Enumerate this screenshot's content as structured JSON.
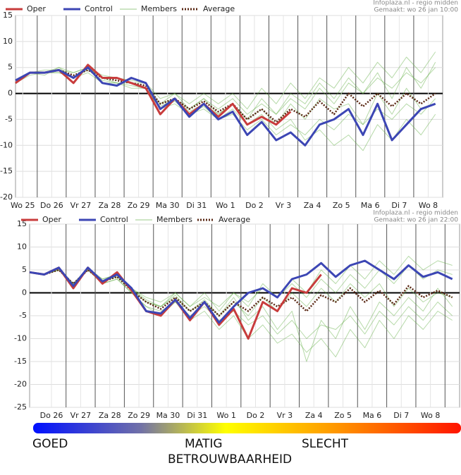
{
  "chart_data": [
    {
      "type": "line",
      "source": "Infoplaza.nl - regio midden",
      "subtitle": "Gemaakt: wo 26 jan 10:00",
      "x": [
        6,
        18,
        30,
        42,
        54,
        66,
        78,
        90,
        102,
        114,
        126,
        138,
        150,
        162,
        174,
        186,
        198,
        210,
        222,
        234,
        246,
        258,
        270,
        282,
        294,
        306,
        318,
        330,
        342,
        354
      ],
      "xlim": [
        6,
        360
      ],
      "xticks": [
        {
          "value": 12,
          "label": "Wo 25"
        },
        {
          "value": 36,
          "label": "Do 26"
        },
        {
          "value": 60,
          "label": "Vr 27"
        },
        {
          "value": 84,
          "label": "Za 28"
        },
        {
          "value": 108,
          "label": "Zo 29"
        },
        {
          "value": 132,
          "label": "Ma 30"
        },
        {
          "value": 156,
          "label": "Di 31"
        },
        {
          "value": 180,
          "label": "Wo 1"
        },
        {
          "value": 204,
          "label": "Do 2"
        },
        {
          "value": 228,
          "label": "Vr 3"
        },
        {
          "value": 252,
          "label": "Za 4"
        },
        {
          "value": 276,
          "label": "Zo 5"
        },
        {
          "value": 300,
          "label": "Ma 6"
        },
        {
          "value": 324,
          "label": "Di 7"
        },
        {
          "value": 348,
          "label": "Wo 8"
        }
      ],
      "ylim": [
        -20,
        15
      ],
      "yticks": [
        -20,
        -15,
        -10,
        -5,
        0,
        5,
        10,
        15
      ],
      "grid": true,
      "series": [
        {
          "name": "Oper",
          "color": "#c83c3c",
          "values": [
            2,
            4,
            4,
            4.5,
            2,
            5.5,
            3,
            3,
            2,
            1,
            -4,
            -1,
            -4,
            -2,
            -4.5,
            -2,
            -6,
            -4.5,
            -6,
            -3.5,
            null,
            null,
            null,
            null,
            null,
            null,
            null,
            null,
            null,
            null
          ]
        },
        {
          "name": "Control",
          "color": "#3c46b4",
          "values": [
            2.5,
            4,
            4,
            4.5,
            3,
            5,
            2,
            1.5,
            3,
            2,
            -3,
            -1,
            -4.5,
            -2,
            -5,
            -3.5,
            -8,
            -5.5,
            -9,
            -7.5,
            -10,
            -6,
            -5,
            -3,
            -8,
            -2,
            -9,
            -6,
            -3,
            -2
          ]
        },
        {
          "name": "Members",
          "color": "#5aaa3c",
          "values": [
            [
              2,
              4,
              3.5,
              5,
              3,
              5,
              3,
              3,
              2,
              2,
              -2,
              0,
              -3,
              -1,
              -3,
              -1,
              -4,
              -2,
              -4,
              -1,
              -3,
              1,
              -2,
              2,
              0,
              3,
              1,
              4,
              2,
              5
            ],
            [
              2,
              3.5,
              4,
              4,
              3,
              4,
              2,
              2,
              1,
              1,
              -3,
              -2,
              -4,
              -3,
              -5,
              -4,
              -7,
              -5,
              -8,
              -6,
              -8,
              -5,
              -7,
              -4,
              -6,
              -3,
              -5,
              -2,
              -4,
              -1
            ],
            [
              2,
              4,
              4.5,
              4.5,
              4,
              5,
              3.5,
              3,
              2.5,
              2,
              -1,
              0,
              -2,
              0,
              -2,
              0,
              -3,
              1,
              -2,
              2,
              -1,
              3,
              1,
              5,
              2,
              6,
              3,
              7,
              4,
              8
            ],
            [
              2,
              4,
              4,
              4,
              3,
              4.5,
              2.5,
              2,
              1.5,
              1,
              -3,
              -1.5,
              -4,
              -2.5,
              -5,
              -3,
              -6,
              -4,
              -7,
              -5,
              -9,
              -7,
              -10,
              -8,
              -11,
              -6,
              -9,
              -5,
              -8,
              -4
            ],
            [
              2,
              4,
              4,
              5,
              4,
              5,
              3,
              2,
              2,
              1,
              -2,
              -1,
              -3,
              -1,
              -4,
              -2,
              -5,
              -1,
              -4,
              0,
              -2,
              2,
              -1,
              3,
              0,
              4,
              -1,
              5,
              1,
              6
            ],
            [
              2,
              4,
              4,
              4.5,
              3,
              5,
              3,
              3,
              2,
              1,
              -2.5,
              -1,
              -3.5,
              -2,
              -4,
              -2,
              -5,
              -3,
              -6,
              -2,
              -5,
              -1,
              -3,
              -2,
              -6,
              0,
              -4,
              1,
              -3,
              -2
            ]
          ]
        },
        {
          "name": "Average",
          "color": "#5a2814",
          "values": [
            2,
            4,
            4,
            4.5,
            3.5,
            4.5,
            3,
            2.5,
            2,
            1.5,
            -2,
            -1,
            -3,
            -1.5,
            -3.5,
            -2,
            -5,
            -3,
            -5.5,
            -3,
            -4.5,
            -1.5,
            -4,
            0,
            -2.5,
            0,
            -2.5,
            0,
            -2,
            0
          ]
        }
      ]
    },
    {
      "type": "line",
      "source": "Infoplaza.nl - regio midden",
      "subtitle": "Gemaakt: wo 26 jan 22:00",
      "x": [
        18,
        30,
        42,
        54,
        66,
        78,
        90,
        102,
        114,
        126,
        138,
        150,
        162,
        174,
        186,
        198,
        210,
        222,
        234,
        246,
        258,
        270,
        282,
        294,
        306,
        318,
        330,
        342,
        354,
        366
      ],
      "xlim": [
        18,
        372
      ],
      "xticks": [
        {
          "value": 36,
          "label": "Do 26"
        },
        {
          "value": 60,
          "label": "Vr 27"
        },
        {
          "value": 84,
          "label": "Za 28"
        },
        {
          "value": 108,
          "label": "Zo 29"
        },
        {
          "value": 132,
          "label": "Ma 30"
        },
        {
          "value": 156,
          "label": "Di 31"
        },
        {
          "value": 180,
          "label": "Wo 1"
        },
        {
          "value": 204,
          "label": "Do 2"
        },
        {
          "value": 228,
          "label": "Vr 3"
        },
        {
          "value": 252,
          "label": "Za 4"
        },
        {
          "value": 276,
          "label": "Zo 5"
        },
        {
          "value": 300,
          "label": "Ma 6"
        },
        {
          "value": 324,
          "label": "Di 7"
        },
        {
          "value": 348,
          "label": "Wo 8"
        }
      ],
      "ylim": [
        -25,
        15
      ],
      "yticks": [
        -25,
        -20,
        -15,
        -10,
        -5,
        0,
        5,
        10,
        15
      ],
      "grid": true,
      "series": [
        {
          "name": "Oper",
          "color": "#c83c3c",
          "values": [
            4.5,
            4,
            5.5,
            1,
            5.5,
            2,
            4.5,
            0.5,
            -4,
            -5,
            -1.5,
            -6,
            -2,
            -7,
            -3.5,
            -10,
            -2,
            -4,
            1,
            0,
            4,
            null,
            null,
            null,
            null,
            null,
            null,
            null,
            null,
            null
          ]
        },
        {
          "name": "Control",
          "color": "#3c46b4",
          "values": [
            4.5,
            4,
            5.5,
            1.5,
            5.5,
            2.5,
            4,
            1,
            -4,
            -4.5,
            -1.5,
            -5.5,
            -2,
            -6.5,
            -3,
            0,
            1,
            -1,
            3,
            4,
            6.5,
            3.5,
            6,
            7,
            5,
            3,
            6,
            3.5,
            4.5,
            3
          ]
        },
        {
          "name": "Members",
          "color": "#5aaa3c",
          "values": [
            [
              4.5,
              4,
              5,
              2,
              5,
              3,
              4,
              1,
              -1,
              -2,
              0,
              -3,
              -1,
              -3,
              0,
              -2,
              1,
              -1,
              2,
              -1,
              3,
              0,
              4,
              1,
              5,
              2,
              6,
              3,
              5,
              4
            ],
            [
              4.5,
              4,
              5,
              1.5,
              5,
              2,
              3,
              0,
              -3,
              -5,
              -2,
              -6,
              -4,
              -8,
              -5,
              -10,
              -7,
              -11,
              -9,
              -13,
              -10,
              -14,
              -8,
              -12,
              -6,
              -10,
              -5,
              -8,
              -4,
              -6
            ],
            [
              4.5,
              4,
              5.5,
              2,
              5.5,
              3,
              4,
              1,
              -2,
              -3,
              0,
              -3,
              0,
              -4,
              0,
              -3,
              2,
              -1,
              3,
              0,
              5,
              2,
              6,
              3,
              7,
              4,
              8,
              5,
              7,
              6
            ],
            [
              4.5,
              4,
              5,
              2,
              5,
              2,
              3,
              0,
              -3,
              -4,
              -2,
              -5,
              -3,
              -6,
              -4,
              -7,
              -5,
              -9,
              -6,
              -10,
              -7,
              -8,
              -5,
              -9,
              -4,
              -7,
              -3,
              -6,
              -2,
              -5
            ],
            [
              4.5,
              4,
              5,
              2,
              5,
              2.5,
              3.5,
              0.5,
              -2,
              -3,
              -1,
              -4,
              -2,
              -5,
              -2,
              -5,
              -1,
              -4,
              0,
              -3,
              1,
              -2,
              2,
              -1,
              2,
              -3,
              1,
              -2,
              0,
              -1
            ],
            [
              4.5,
              4,
              5,
              1.5,
              5,
              2.5,
              3.5,
              1,
              -1.5,
              -3,
              -0.5,
              -4,
              -1.5,
              -5,
              -1,
              -6,
              -3,
              -8,
              -4,
              -15,
              -6,
              -10,
              -3,
              -8,
              -2,
              -5,
              -1,
              -4,
              1,
              -3
            ]
          ]
        },
        {
          "name": "Average",
          "color": "#5a2814",
          "values": [
            4.5,
            4,
            5,
            2,
            5,
            2.5,
            3.5,
            0.5,
            -2,
            -3.5,
            -1,
            -4,
            -2,
            -5,
            -2,
            -4,
            -1,
            -3,
            -1,
            -4,
            -0.5,
            -2,
            1,
            -2,
            0.5,
            -2.5,
            1.5,
            -1,
            0.5,
            -1
          ]
        }
      ]
    }
  ],
  "reliability": {
    "labels": [
      "GOED",
      "MATIG",
      "SLECHT"
    ],
    "title": "BETROUWBAARHEID"
  }
}
